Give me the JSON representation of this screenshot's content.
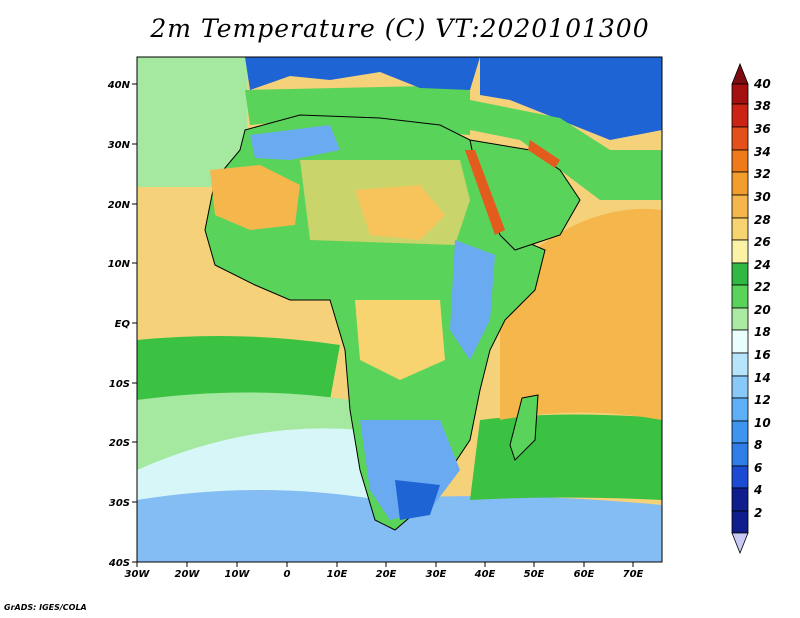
{
  "title": "2m Temperature (C) VT:2020101300",
  "credit": "GrADS: IGES/COLA",
  "map": {
    "lon_range": [
      -30,
      76
    ],
    "lat_range": [
      -40,
      45
    ],
    "lon_ticks": [
      "30W",
      "20W",
      "10W",
      "0",
      "10E",
      "20E",
      "30E",
      "40E",
      "50E",
      "60E",
      "70E"
    ],
    "lat_ticks": [
      "40S",
      "30S",
      "20S",
      "10S",
      "EQ",
      "10N",
      "20N",
      "30N",
      "40N"
    ],
    "fill_colors": {
      "ocean_warm": "#f5d27a",
      "ocean_mild": "#3cc243",
      "ocean_cool": "#a5e8a0",
      "ocean_cold": "#d6f6f8",
      "south_cold": "#84bcf4",
      "land_green": "#5ad35a",
      "land_hot": "#f39d2e",
      "highlands_cool": "#6aaaf0",
      "alps_cold": "#1f64d4",
      "red_sea": "#e35b1d"
    }
  },
  "colorbar": {
    "labels": [
      "2",
      "4",
      "6",
      "8",
      "10",
      "12",
      "14",
      "16",
      "18",
      "20",
      "22",
      "24",
      "26",
      "28",
      "30",
      "32",
      "34",
      "36",
      "38",
      "40"
    ],
    "colors": [
      "#c9c9f5",
      "#0f1e8c",
      "#1b4bd2",
      "#2f7ee8",
      "#3d95f0",
      "#5db0f5",
      "#88c9f7",
      "#b6e4fa",
      "#e8fffd",
      "#aaeaa3",
      "#5ad35a",
      "#2fb842",
      "#fbf2a6",
      "#f8d471",
      "#f5b64c",
      "#f39d2e",
      "#ef7a1c",
      "#e3501a",
      "#cb2314",
      "#a40f10",
      "#7d0c10"
    ]
  }
}
